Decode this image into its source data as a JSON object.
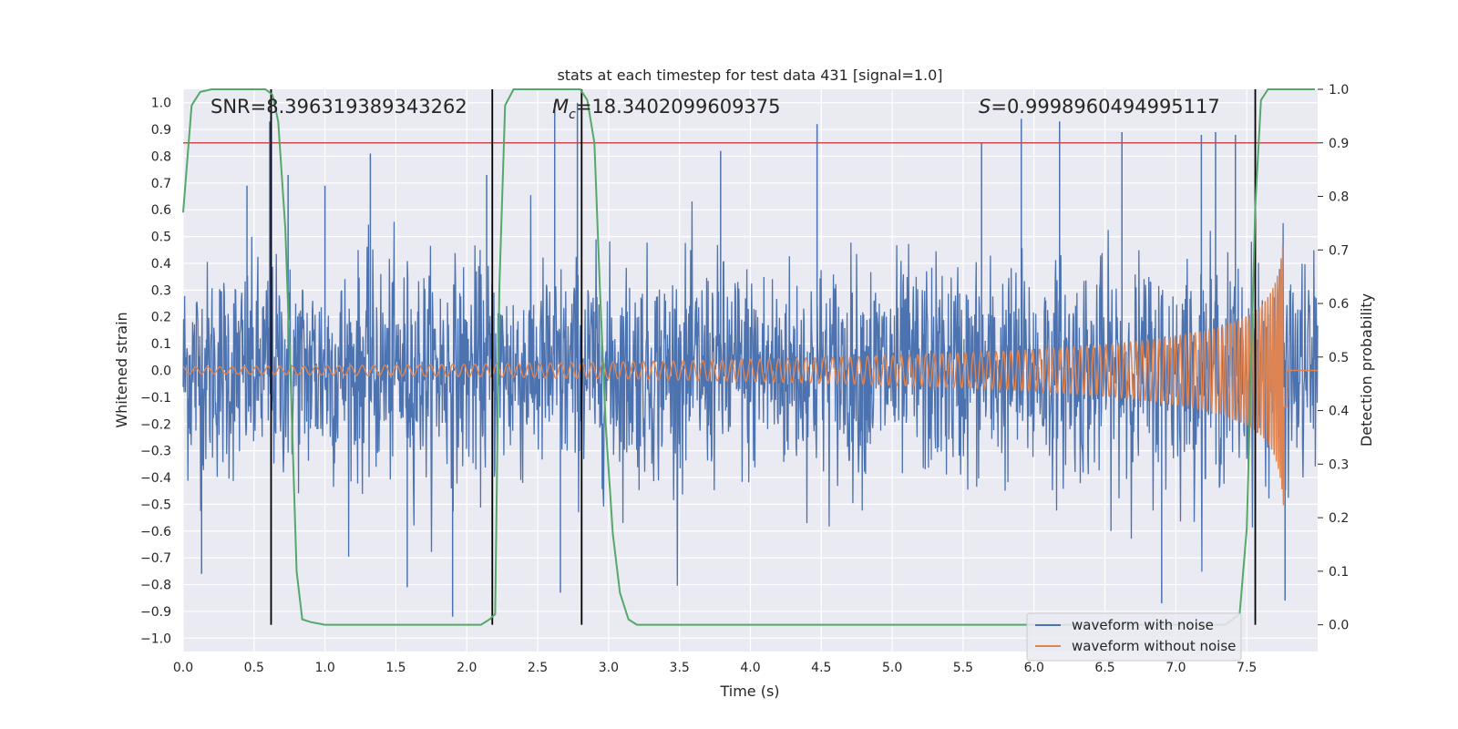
{
  "chart_data": {
    "type": "line",
    "title": "stats at each timestep for test data 431 [signal=1.0]",
    "xlabel": "Time (s)",
    "ylabel": "Whitened strain",
    "y2label": "Detection probability",
    "xlim": [
      0.0,
      8.0
    ],
    "ylim": [
      -1.05,
      1.05
    ],
    "y2lim": [
      -0.05,
      1.0
    ],
    "x_ticks": [
      0.0,
      0.5,
      1.0,
      1.5,
      2.0,
      2.5,
      3.0,
      3.5,
      4.0,
      4.5,
      5.0,
      5.5,
      6.0,
      6.5,
      7.0,
      7.5
    ],
    "x_tick_labels": [
      "0.0",
      "0.5",
      "1.0",
      "1.5",
      "2.0",
      "2.5",
      "3.0",
      "3.5",
      "4.0",
      "4.5",
      "5.0",
      "5.5",
      "6.0",
      "6.5",
      "7.0",
      "7.5"
    ],
    "y_ticks": [
      1.0,
      0.9,
      0.8,
      0.7,
      0.6,
      0.5,
      0.4,
      0.3,
      0.2,
      0.1,
      0.0,
      -0.1,
      -0.2,
      -0.3,
      -0.4,
      -0.5,
      -0.6,
      -0.7,
      -0.8,
      -0.9,
      -1.0
    ],
    "y_tick_labels": [
      "1.0",
      "0.9",
      "0.8",
      "0.7",
      "0.6",
      "0.5",
      "0.4",
      "0.3",
      "0.2",
      "0.1",
      "0.0",
      "−0.1",
      "−0.2",
      "−0.3",
      "−0.4",
      "−0.5",
      "−0.6",
      "−0.7",
      "−0.8",
      "−0.9",
      "−1.0"
    ],
    "y2_ticks": [
      1.0,
      0.9,
      0.8,
      0.7,
      0.6,
      0.5,
      0.4,
      0.3,
      0.2,
      0.1,
      0.0
    ],
    "y2_tick_labels": [
      "1.0",
      "0.9",
      "0.8",
      "0.7",
      "0.6",
      "0.5",
      "0.4",
      "0.3",
      "0.2",
      "0.1",
      "0.0"
    ],
    "annotations": {
      "snr": "SNR=8.396319389343262",
      "mc_symbol": "M",
      "mc_sub": "c",
      "mc_value": "=18.3402099609375",
      "s_symbol": "S",
      "s_value": "=0.9998960494995117"
    },
    "threshold_y2": 0.9,
    "vlines_x": [
      0.62,
      2.18,
      2.81,
      7.56
    ],
    "series": [
      {
        "name": "waveform with noise",
        "color": "#4c72b0",
        "axis": "left",
        "description_range": [
          -0.9,
          1.0
        ],
        "spikes": [
          {
            "x": 0.13,
            "y": -0.76
          },
          {
            "x": 0.45,
            "y": 0.69
          },
          {
            "x": 0.61,
            "y": 0.93
          },
          {
            "x": 0.62,
            "y": 1.0
          },
          {
            "x": 0.74,
            "y": 0.73
          },
          {
            "x": 1.0,
            "y": 0.69
          },
          {
            "x": 1.32,
            "y": 0.81
          },
          {
            "x": 1.58,
            "y": -0.81
          },
          {
            "x": 1.9,
            "y": -0.92
          },
          {
            "x": 2.14,
            "y": 0.73
          },
          {
            "x": 2.62,
            "y": 1.0
          },
          {
            "x": 2.66,
            "y": -0.83
          },
          {
            "x": 2.78,
            "y": 1.0
          },
          {
            "x": 3.79,
            "y": 0.82
          },
          {
            "x": 4.47,
            "y": 0.92
          },
          {
            "x": 5.63,
            "y": 0.85
          },
          {
            "x": 5.91,
            "y": 0.94
          },
          {
            "x": 6.18,
            "y": 0.93
          },
          {
            "x": 6.62,
            "y": 0.89
          },
          {
            "x": 7.18,
            "y": 0.88
          },
          {
            "x": 7.28,
            "y": 0.89
          },
          {
            "x": 7.42,
            "y": 0.88
          },
          {
            "x": 7.77,
            "y": -0.86
          },
          {
            "x": 6.9,
            "y": -0.87
          }
        ]
      },
      {
        "name": "waveform without noise",
        "color": "#dd8452",
        "axis": "left",
        "model": "chirp",
        "t_merger": 7.78,
        "start_amplitude": 0.012,
        "peak_amplitude": 0.52
      },
      {
        "name": "detection probability",
        "color": "#55a868",
        "axis": "right",
        "x": [
          0.0,
          0.06,
          0.12,
          0.2,
          0.3,
          0.4,
          0.5,
          0.58,
          0.63,
          0.67,
          0.72,
          0.76,
          0.8,
          0.84,
          0.9,
          1.0,
          1.5,
          2.0,
          2.1,
          2.16,
          2.2,
          2.23,
          2.27,
          2.33,
          2.4,
          2.5,
          2.6,
          2.7,
          2.8,
          2.85,
          2.9,
          2.94,
          2.98,
          3.03,
          3.08,
          3.14,
          3.2,
          3.3,
          4.0,
          5.0,
          6.0,
          7.0,
          7.35,
          7.45,
          7.5,
          7.53,
          7.56,
          7.6,
          7.65,
          7.7,
          7.8,
          7.9,
          7.98
        ],
        "y": [
          0.77,
          0.97,
          0.995,
          1.0,
          1.0,
          1.0,
          1.0,
          1.0,
          0.99,
          0.94,
          0.74,
          0.44,
          0.1,
          0.01,
          0.005,
          0.0,
          0.0,
          0.0,
          0.0,
          0.01,
          0.02,
          0.63,
          0.97,
          1.0,
          1.0,
          1.0,
          1.0,
          1.0,
          1.0,
          0.98,
          0.9,
          0.62,
          0.37,
          0.17,
          0.06,
          0.01,
          0.0,
          0.0,
          0.0,
          0.0,
          0.0,
          0.0,
          0.0,
          0.02,
          0.18,
          0.48,
          0.78,
          0.98,
          1.0,
          1.0,
          1.0,
          1.0,
          1.0
        ]
      }
    ],
    "legend": {
      "placement": "lower-right",
      "entries": [
        {
          "label": "waveform with noise",
          "color": "#4c72b0"
        },
        {
          "label": "waveform without noise",
          "color": "#dd8452"
        }
      ]
    }
  }
}
